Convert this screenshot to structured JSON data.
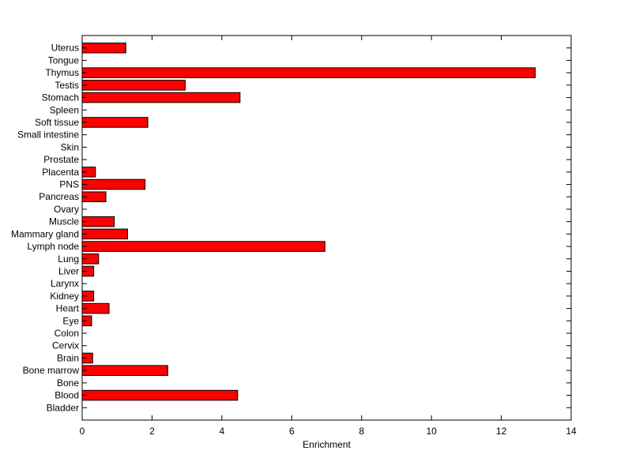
{
  "chart_data": {
    "type": "bar",
    "orientation": "horizontal",
    "categories": [
      "Bladder",
      "Blood",
      "Bone",
      "Bone marrow",
      "Brain",
      "Cervix",
      "Colon",
      "Eye",
      "Heart",
      "Kidney",
      "Larynx",
      "Liver",
      "Lung",
      "Lymph node",
      "Mammary gland",
      "Muscle",
      "Ovary",
      "Pancreas",
      "PNS",
      "Placenta",
      "Prostate",
      "Skin",
      "Small intestine",
      "Soft tissue",
      "Spleen",
      "Stomach",
      "Testis",
      "Thymus",
      "Tongue",
      "Uterus"
    ],
    "values": [
      0,
      4.45,
      0,
      2.45,
      0.3,
      0,
      0,
      0.27,
      0.77,
      0.33,
      0,
      0.33,
      0.47,
      6.95,
      1.3,
      0.92,
      0,
      0.68,
      1.8,
      0.38,
      0,
      0,
      0,
      1.88,
      0,
      4.52,
      2.95,
      12.97,
      0,
      1.25
    ],
    "xlabel": "Enrichment",
    "ylabel": "",
    "xlim": [
      0,
      14
    ],
    "xticks": [
      0,
      2,
      4,
      6,
      8,
      10,
      12,
      14
    ],
    "grid": false,
    "bar_color": "#ff0000",
    "bar_edge_color": "#000000"
  }
}
